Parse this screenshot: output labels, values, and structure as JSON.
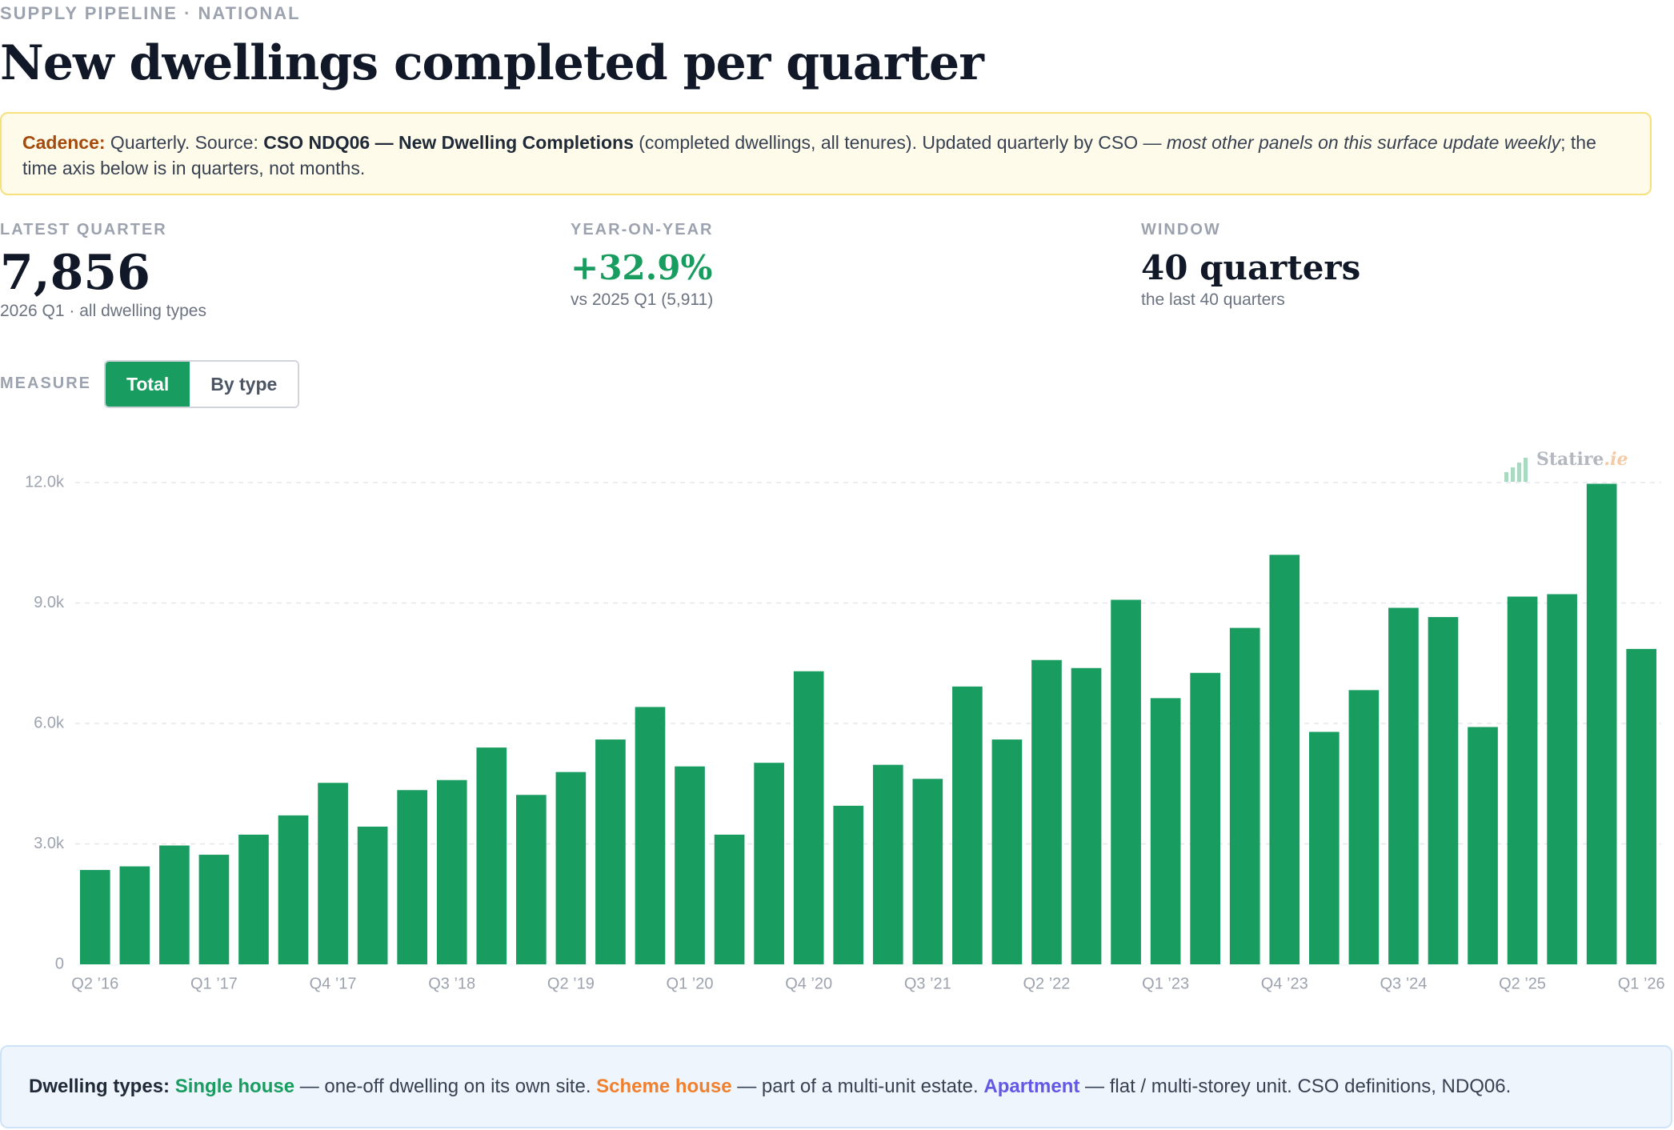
{
  "header": {
    "eyebrow": "SUPPLY PIPELINE · NATIONAL",
    "title": "New dwellings completed per quarter"
  },
  "notice": {
    "label": "Cadence:",
    "text1": " Quarterly. Source: ",
    "source": "CSO NDQ06 — New Dwelling Completions",
    "text2": " (completed dwellings, all tenures). Updated quarterly by CSO — ",
    "italic": "most other panels on this surface update weekly",
    "text3": "; the time axis below is in quarters, not months."
  },
  "stats": [
    {
      "label": "LATEST QUARTER",
      "value": "7,856",
      "sub": "2026 Q1 · all dwelling types",
      "color": "#111827"
    },
    {
      "label": "YEAR-ON-YEAR",
      "value": "+32.9%",
      "sub": "vs 2025 Q1 (5,911)",
      "color": "#199c5f"
    },
    {
      "label": "WINDOW",
      "value": "40 quarters",
      "sub": "the last 40 quarters",
      "color": "#111827"
    }
  ],
  "measure": {
    "label": "MEASURE",
    "options": [
      "Total",
      "By type"
    ],
    "selected": "Total"
  },
  "watermark": {
    "name": "Statire",
    "suffix": ".ie",
    "icon": "bar-chart-icon"
  },
  "chart_data": {
    "type": "bar",
    "color": "#199c5f",
    "ylim": [
      0,
      12000
    ],
    "yticks": [
      0,
      3000,
      6000,
      9000,
      12000
    ],
    "ytick_labels": [
      "0",
      "3.0k",
      "6.0k",
      "9.0k",
      "12.0k"
    ],
    "grid": true,
    "xtick_labels": [
      "Q2 ’16",
      "Q1 ’17",
      "Q4 ’17",
      "Q3 ’18",
      "Q2 ’19",
      "Q1 ’20",
      "Q4 ’20",
      "Q3 ’21",
      "Q2 ’22",
      "Q1 ’23",
      "Q4 ’23",
      "Q3 ’24",
      "Q2 ’25",
      "Q1 ’26"
    ],
    "xtick_every": 3,
    "categories": [
      "2016 Q2",
      "2016 Q3",
      "2016 Q4",
      "2017 Q1",
      "2017 Q2",
      "2017 Q3",
      "2017 Q4",
      "2018 Q1",
      "2018 Q2",
      "2018 Q3",
      "2018 Q4",
      "2019 Q1",
      "2019 Q2",
      "2019 Q3",
      "2019 Q4",
      "2020 Q1",
      "2020 Q2",
      "2020 Q3",
      "2020 Q4",
      "2021 Q1",
      "2021 Q2",
      "2021 Q3",
      "2021 Q4",
      "2022 Q1",
      "2022 Q2",
      "2022 Q3",
      "2022 Q4",
      "2023 Q1",
      "2023 Q2",
      "2023 Q3",
      "2023 Q4",
      "2024 Q1",
      "2024 Q2",
      "2024 Q3",
      "2024 Q4",
      "2025 Q1",
      "2025 Q2",
      "2025 Q3",
      "2025 Q4",
      "2026 Q1"
    ],
    "values": [
      2350,
      2440,
      2960,
      2730,
      3230,
      3710,
      4520,
      3430,
      4340,
      4590,
      5400,
      4220,
      4790,
      5600,
      6410,
      4930,
      3230,
      5020,
      7300,
      3950,
      4970,
      4620,
      6920,
      5600,
      7580,
      7380,
      9080,
      6630,
      7260,
      8380,
      10200,
      5790,
      6830,
      8880,
      8650,
      5911,
      9160,
      9220,
      11970,
      7856
    ]
  },
  "legend": {
    "label": "Dwelling types:",
    "single": "Single house",
    "single_desc": " — one-off dwelling on its own site. ",
    "scheme": "Scheme house",
    "scheme_desc": " — part of a multi-unit estate. ",
    "apartment": "Apartment",
    "apartment_desc": " — flat / multi-storey unit. CSO definitions, NDQ06."
  }
}
